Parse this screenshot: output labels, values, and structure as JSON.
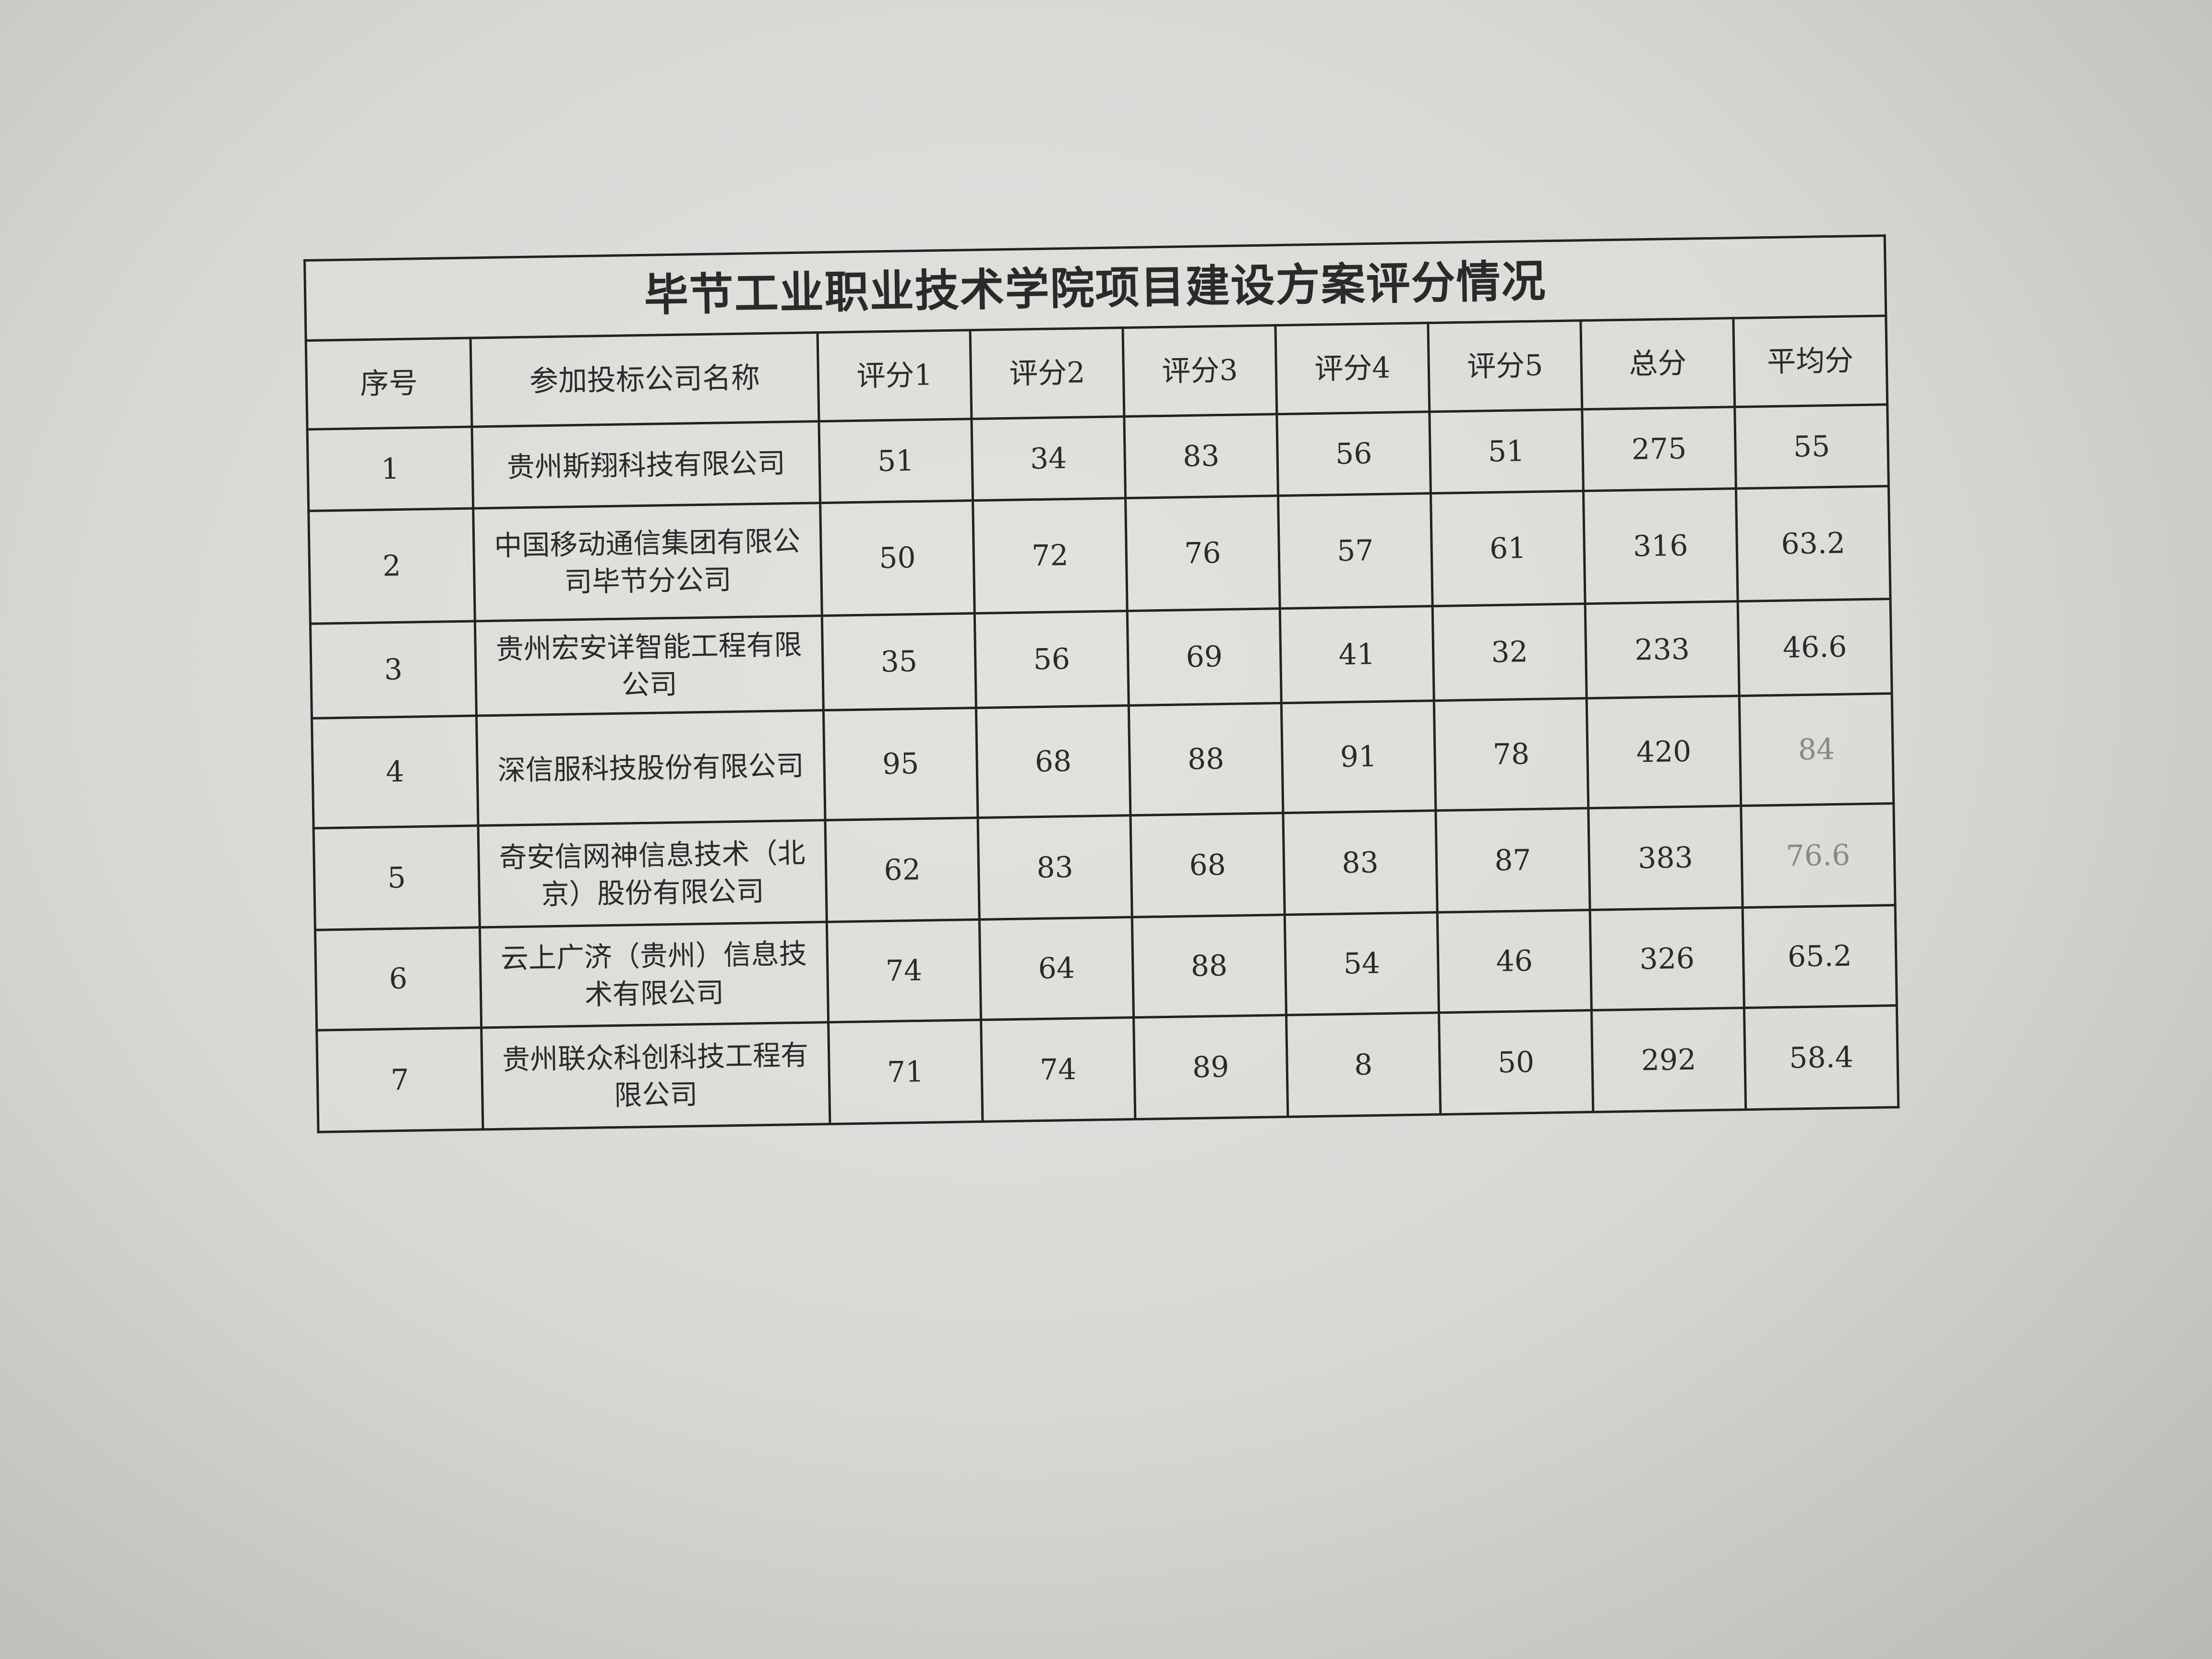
{
  "table": {
    "title": "毕节工业职业技术学院项目建设方案评分情况",
    "headers": [
      "序号",
      "参加投标公司名称",
      "评分1",
      "评分2",
      "评分3",
      "评分4",
      "评分5",
      "总分",
      "平均分"
    ],
    "rows": [
      {
        "no": "1",
        "company": "贵州斯翔科技有限公司",
        "s1": "51",
        "s2": "34",
        "s3": "83",
        "s4": "56",
        "s5": "51",
        "total": "275",
        "avg": "55"
      },
      {
        "no": "2",
        "company": "中国移动通信集团有限公司毕节分公司",
        "s1": "50",
        "s2": "72",
        "s3": "76",
        "s4": "57",
        "s5": "61",
        "total": "316",
        "avg": "63.2"
      },
      {
        "no": "3",
        "company": "贵州宏安详智能工程有限公司",
        "s1": "35",
        "s2": "56",
        "s3": "69",
        "s4": "41",
        "s5": "32",
        "total": "233",
        "avg": "46.6"
      },
      {
        "no": "4",
        "company": "深信服科技股份有限公司",
        "s1": "95",
        "s2": "68",
        "s3": "88",
        "s4": "91",
        "s5": "78",
        "total": "420",
        "avg": "84"
      },
      {
        "no": "5",
        "company": "奇安信网神信息技术（北京）股份有限公司",
        "s1": "62",
        "s2": "83",
        "s3": "68",
        "s4": "83",
        "s5": "87",
        "total": "383",
        "avg": "76.6"
      },
      {
        "no": "6",
        "company": "云上广济（贵州）信息技术有限公司",
        "s1": "74",
        "s2": "64",
        "s3": "88",
        "s4": "54",
        "s5": "46",
        "total": "326",
        "avg": "65.2"
      },
      {
        "no": "7",
        "company": "贵州联众科创科技工程有限公司",
        "s1": "71",
        "s2": "74",
        "s3": "89",
        "s4": "8",
        "s5": "50",
        "total": "292",
        "avg": "58.4"
      }
    ]
  }
}
